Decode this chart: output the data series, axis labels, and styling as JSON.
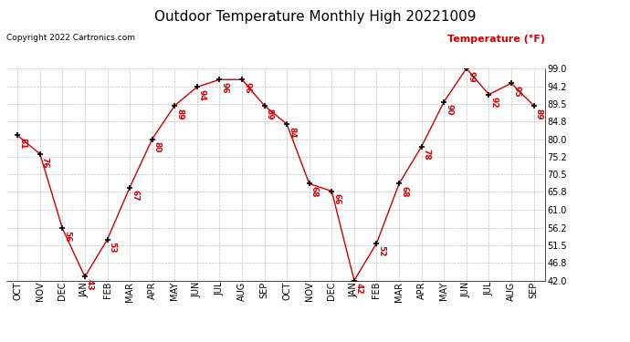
{
  "title": "Outdoor Temperature Monthly High 20221009",
  "copyright": "Copyright 2022 Cartronics.com",
  "legend_label": "Temperature (°F)",
  "x_labels": [
    "OCT",
    "NOV",
    "DEC",
    "JAN",
    "FEB",
    "MAR",
    "APR",
    "MAY",
    "JUN",
    "JUL",
    "AUG",
    "SEP",
    "OCT",
    "NOV",
    "DEC",
    "JAN",
    "FEB",
    "MAR",
    "APR",
    "MAY",
    "JUN",
    "JUL",
    "AUG",
    "SEP"
  ],
  "y_values": [
    81,
    76,
    56,
    43,
    53,
    67,
    80,
    89,
    94,
    96,
    96,
    89,
    84,
    68,
    66,
    42,
    52,
    68,
    78,
    90,
    99,
    92,
    95,
    89
  ],
  "y_ticks": [
    42.0,
    46.8,
    51.5,
    56.2,
    61.0,
    65.8,
    70.5,
    75.2,
    80.0,
    84.8,
    89.5,
    94.2,
    99.0
  ],
  "y_min": 42.0,
  "y_max": 99.0,
  "line_color": "#cc0000",
  "marker_color": "#000000",
  "label_color": "#cc0000",
  "background_color": "#ffffff",
  "grid_color": "#c0c0c0",
  "title_color": "#000000",
  "copyright_color": "#000000",
  "legend_color": "#cc0000",
  "title_fontsize": 11,
  "annot_fontsize": 6.5,
  "tick_fontsize": 7,
  "copyright_fontsize": 6.5,
  "legend_fontsize": 8
}
